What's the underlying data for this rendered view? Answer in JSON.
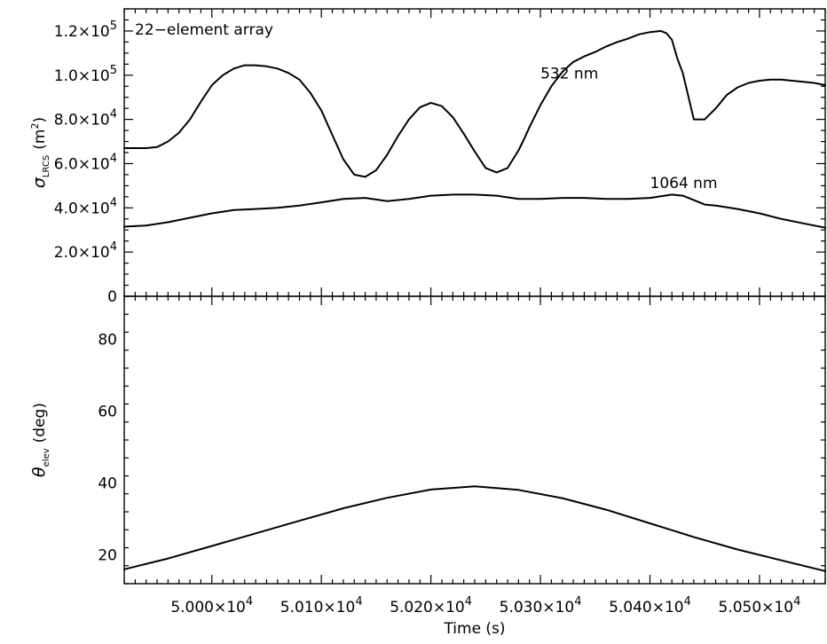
{
  "chart_data": [
    {
      "type": "line",
      "annotation": "22−element array",
      "ylabel_main": "σ",
      "ylabel_sub": "LRCS",
      "ylabel_unit": "(m",
      "ylabel_unit_sup": "2",
      "ylabel_unit_close": ")",
      "xlim": [
        49920,
        50560
      ],
      "ylim": [
        0,
        130000
      ],
      "yticks": [
        {
          "value": 0,
          "mantissa": "0",
          "exp": ""
        },
        {
          "value": 20000,
          "mantissa": "2.0×10",
          "exp": "4"
        },
        {
          "value": 40000,
          "mantissa": "4.0×10",
          "exp": "4"
        },
        {
          "value": 60000,
          "mantissa": "6.0×10",
          "exp": "4"
        },
        {
          "value": 80000,
          "mantissa": "8.0×10",
          "exp": "4"
        },
        {
          "value": 100000,
          "mantissa": "1.0×10",
          "exp": "5"
        },
        {
          "value": 120000,
          "mantissa": "1.2×10",
          "exp": "5"
        }
      ],
      "yminor_step": 5000,
      "series": [
        {
          "name": "532 nm",
          "label_x": 50300,
          "label_y": 98500,
          "x": [
            49920,
            49940,
            49950,
            49960,
            49970,
            49980,
            49990,
            50000,
            50010,
            50020,
            50030,
            50040,
            50050,
            50060,
            50070,
            50080,
            50090,
            50100,
            50110,
            50120,
            50130,
            50140,
            50150,
            50155,
            50160,
            50170,
            50180,
            50190,
            50200,
            50210,
            50220,
            50230,
            50240,
            50250,
            50260,
            50270,
            50280,
            50285,
            50290,
            50300,
            50310,
            50320,
            50330,
            50340,
            50350,
            50360,
            50370,
            50380,
            50390,
            50400,
            50410,
            50415,
            50420,
            50425,
            50430,
            50440,
            50450,
            50460,
            50470,
            50480,
            50490,
            50500,
            50510,
            50520,
            50530,
            50540,
            50550,
            50560
          ],
          "y": [
            67000,
            67000,
            67500,
            70000,
            74000,
            80000,
            88000,
            95500,
            100000,
            103000,
            104500,
            104500,
            104000,
            103000,
            101000,
            98000,
            92000,
            84000,
            73000,
            62000,
            55000,
            54000,
            57000,
            60500,
            64000,
            72500,
            80000,
            85500,
            87500,
            86000,
            81000,
            73500,
            65500,
            58000,
            56000,
            58000,
            66000,
            71000,
            76500,
            86500,
            95000,
            101500,
            106000,
            108500,
            110500,
            113000,
            115000,
            116500,
            118500,
            119500,
            120000,
            119000,
            116000,
            107500,
            101000,
            80000,
            80000,
            85000,
            91000,
            94500,
            96500,
            97500,
            98000,
            98000,
            97500,
            97000,
            96500,
            95500
          ]
        },
        {
          "name": "1064 nm",
          "label_x": 50400,
          "label_y": 49000,
          "x": [
            49920,
            49940,
            49960,
            49980,
            50000,
            50020,
            50040,
            50060,
            50080,
            50100,
            50120,
            50140,
            50160,
            50180,
            50200,
            50220,
            50240,
            50260,
            50280,
            50300,
            50320,
            50340,
            50360,
            50380,
            50400,
            50420,
            50430,
            50440,
            50450,
            50460,
            50480,
            50500,
            50520,
            50540,
            50560
          ],
          "y": [
            31500,
            32000,
            33500,
            35500,
            37500,
            39000,
            39500,
            40000,
            41000,
            42500,
            44000,
            44500,
            43000,
            44000,
            45500,
            46000,
            46000,
            45500,
            44000,
            44000,
            44500,
            44500,
            44000,
            44000,
            44500,
            46000,
            45500,
            43500,
            41500,
            41000,
            39500,
            37500,
            35000,
            33000,
            31000
          ]
        }
      ]
    },
    {
      "type": "line",
      "ylabel_main": "θ",
      "ylabel_sub": "elev",
      "ylabel_unit": "(deg)",
      "xlabel": "Time (s)",
      "xlim": [
        49920,
        50560
      ],
      "ylim": [
        12,
        92
      ],
      "yticks": [
        {
          "value": 20,
          "label": "20"
        },
        {
          "value": 40,
          "label": "40"
        },
        {
          "value": 60,
          "label": "60"
        },
        {
          "value": 80,
          "label": "80"
        }
      ],
      "yminor_step": 5,
      "xticks": [
        {
          "value": 50000,
          "mantissa": "5.000×10",
          "exp": "4"
        },
        {
          "value": 50100,
          "mantissa": "5.010×10",
          "exp": "4"
        },
        {
          "value": 50200,
          "mantissa": "5.020×10",
          "exp": "4"
        },
        {
          "value": 50300,
          "mantissa": "5.030×10",
          "exp": "4"
        },
        {
          "value": 50400,
          "mantissa": "5.040×10",
          "exp": "4"
        },
        {
          "value": 50500,
          "mantissa": "5.050×10",
          "exp": "4"
        }
      ],
      "xminor_step": 10,
      "series": [
        {
          "x": [
            49920,
            49960,
            50000,
            50040,
            50080,
            50120,
            50160,
            50200,
            50240,
            50280,
            50320,
            50360,
            50400,
            50440,
            50480,
            50520,
            50560
          ],
          "y": [
            16,
            19,
            22.5,
            26,
            29.5,
            33,
            35.9,
            38.2,
            39.1,
            38.1,
            35.8,
            32.6,
            28.8,
            25,
            21.5,
            18.5,
            15.5
          ]
        }
      ]
    }
  ]
}
